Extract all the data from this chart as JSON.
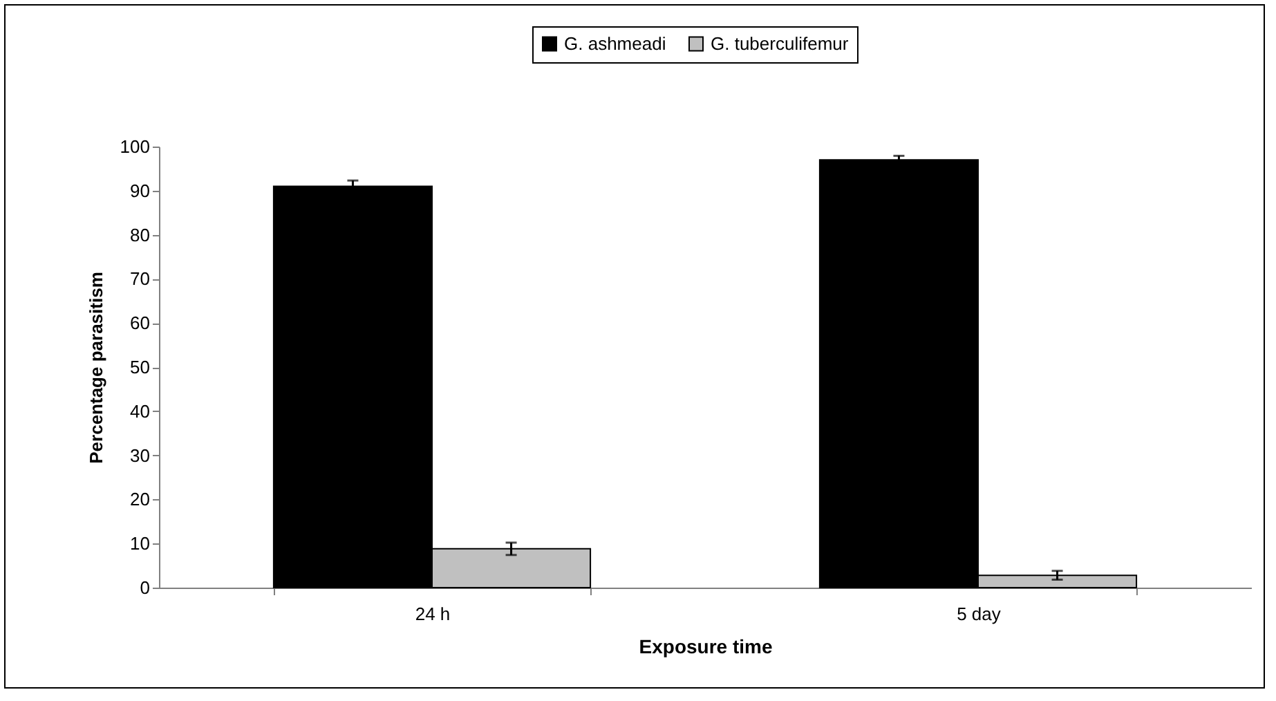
{
  "chart_data": {
    "type": "bar",
    "xlabel": "Exposure time",
    "ylabel": "Percentage parasitism",
    "categories": [
      "24 h",
      "5 day"
    ],
    "series": [
      {
        "name": "G. ashmeadi",
        "color": "#000000",
        "values": [
          91,
          97
        ],
        "errors": [
          1.3,
          0.9
        ]
      },
      {
        "name": "G. tuberculifemur",
        "color": "#c0c0c0",
        "values": [
          8.8,
          2.8
        ],
        "errors": [
          1.4,
          1.0
        ]
      }
    ],
    "ylim": [
      0,
      100
    ],
    "yticks": [
      0,
      10,
      20,
      30,
      40,
      50,
      60,
      70,
      80,
      90,
      100
    ],
    "grid": false,
    "legend": "top"
  }
}
